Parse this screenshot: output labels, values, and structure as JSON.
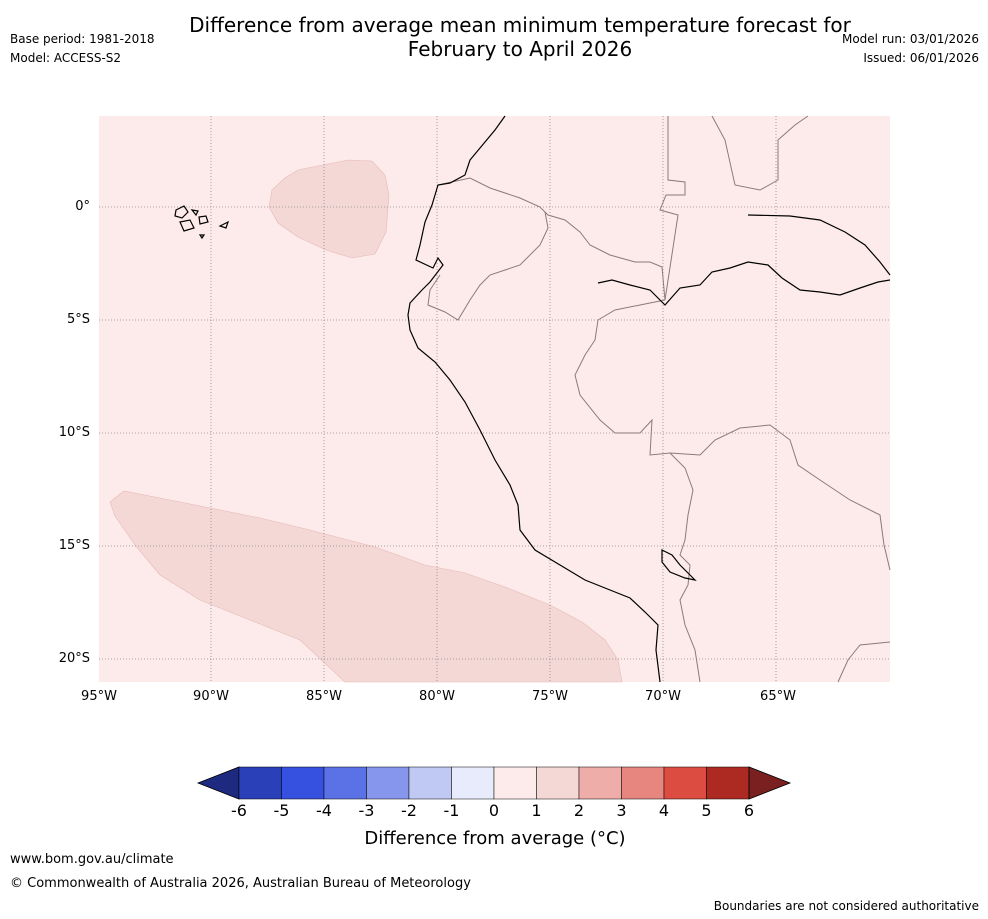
{
  "title_line1": "Difference from average mean minimum temperature forecast for",
  "title_line2": "February to April 2026",
  "base_period": "Base period: 1981-2018",
  "model": "Model: ACCESS-S2",
  "model_run": "Model run: 03/01/2026",
  "issued": "Issued: 06/01/2026",
  "lat_labels": [
    "0°",
    "5°S",
    "10°S",
    "15°S",
    "20°S"
  ],
  "lon_labels": [
    "95°W",
    "90°W",
    "85°W",
    "80°W",
    "75°W",
    "70°W",
    "65°W"
  ],
  "colorbar": {
    "ticks": [
      "-6",
      "-5",
      "-4",
      "-3",
      "-2",
      "-1",
      "0",
      "1",
      "2",
      "3",
      "4",
      "5",
      "6"
    ],
    "colors": [
      "#1e2a80",
      "#2a40b8",
      "#3650e0",
      "#5a72e6",
      "#8696ec",
      "#c0c8f4",
      "#e8ebfb",
      "#fcebea",
      "#f4d8d6",
      "#eeada8",
      "#e6867e",
      "#dc4c40",
      "#ad2a22",
      "#7a2020"
    ],
    "label": "Difference from average (°C)"
  },
  "colors": {
    "map_background": "#fcebea",
    "anomaly_fill": "#f4d8d6",
    "coastline": "#000000",
    "border": "#8c7a7a",
    "gridline": "#8a8a8a"
  },
  "footer_url": "www.bom.gov.au/climate",
  "copyright": "© Commonwealth of Australia 2026, Australian Bureau of Meteorology",
  "disclaimer": "Boundaries are not considered authoritative"
}
